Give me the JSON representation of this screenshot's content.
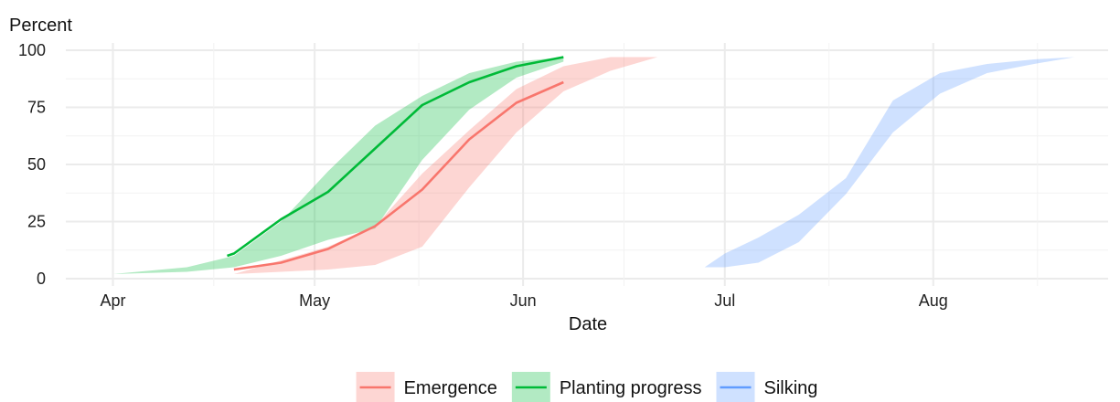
{
  "chart_data": {
    "type": "area",
    "ylabel": "Percent",
    "xlabel": "Date",
    "x_axis_kind": "date",
    "xlim": [
      "2025-03-25",
      "2025-08-27"
    ],
    "ylim": [
      0,
      100
    ],
    "y_ticks": [
      0,
      25,
      50,
      75,
      100
    ],
    "x_ticks": [
      {
        "date": "2025-04-01",
        "label": "Apr"
      },
      {
        "date": "2025-05-01",
        "label": "May"
      },
      {
        "date": "2025-06-01",
        "label": "Jun"
      },
      {
        "date": "2025-07-01",
        "label": "Jul"
      },
      {
        "date": "2025-08-01",
        "label": "Aug"
      }
    ],
    "grid": true,
    "legend_position": "bottom",
    "series": [
      {
        "name": "Emergence",
        "color": "#F8766D",
        "band": [
          {
            "x": "2025-04-19",
            "low": 2,
            "high": 2
          },
          {
            "x": "2025-04-26",
            "low": 3,
            "high": 8
          },
          {
            "x": "2025-05-03",
            "low": 4,
            "high": 14
          },
          {
            "x": "2025-05-10",
            "low": 6,
            "high": 23
          },
          {
            "x": "2025-05-17",
            "low": 14,
            "high": 46
          },
          {
            "x": "2025-05-24",
            "low": 40,
            "high": 65
          },
          {
            "x": "2025-05-31",
            "low": 64,
            "high": 83
          },
          {
            "x": "2025-06-07",
            "low": 82,
            "high": 93
          },
          {
            "x": "2025-06-14",
            "low": 91,
            "high": 97
          },
          {
            "x": "2025-06-21",
            "low": 97,
            "high": 97
          }
        ],
        "line": [
          {
            "x": "2025-04-19",
            "y": 4
          },
          {
            "x": "2025-04-26",
            "y": 7
          },
          {
            "x": "2025-05-03",
            "y": 13
          },
          {
            "x": "2025-05-10",
            "y": 23
          },
          {
            "x": "2025-05-17",
            "y": 39
          },
          {
            "x": "2025-05-24",
            "y": 61
          },
          {
            "x": "2025-05-31",
            "y": 77
          },
          {
            "x": "2025-06-07",
            "y": 86
          }
        ]
      },
      {
        "name": "Planting progress",
        "color": "#00BA38",
        "band": [
          {
            "x": "2025-04-01",
            "low": 2,
            "high": 2
          },
          {
            "x": "2025-04-12",
            "low": 3,
            "high": 5
          },
          {
            "x": "2025-04-19",
            "low": 5,
            "high": 10
          },
          {
            "x": "2025-04-26",
            "low": 10,
            "high": 25
          },
          {
            "x": "2025-05-03",
            "low": 17,
            "high": 47
          },
          {
            "x": "2025-05-10",
            "low": 22,
            "high": 67
          },
          {
            "x": "2025-05-17",
            "low": 52,
            "high": 80
          },
          {
            "x": "2025-05-24",
            "low": 74,
            "high": 90
          },
          {
            "x": "2025-05-31",
            "low": 88,
            "high": 95
          },
          {
            "x": "2025-06-07",
            "low": 95,
            "high": 97
          }
        ],
        "line": [
          {
            "x": "2025-04-18",
            "y": 10
          },
          {
            "x": "2025-04-19",
            "y": 11
          },
          {
            "x": "2025-04-26",
            "y": 26
          },
          {
            "x": "2025-05-03",
            "y": 38
          },
          {
            "x": "2025-05-10",
            "y": 57
          },
          {
            "x": "2025-05-17",
            "y": 76
          },
          {
            "x": "2025-05-24",
            "y": 86
          },
          {
            "x": "2025-05-31",
            "y": 93
          },
          {
            "x": "2025-06-07",
            "y": 97
          }
        ]
      },
      {
        "name": "Silking",
        "color": "#619CFF",
        "band": [
          {
            "x": "2025-06-28",
            "low": 5,
            "high": 5
          },
          {
            "x": "2025-07-01",
            "low": 5,
            "high": 11
          },
          {
            "x": "2025-07-06",
            "low": 7,
            "high": 18
          },
          {
            "x": "2025-07-12",
            "low": 16,
            "high": 28
          },
          {
            "x": "2025-07-19",
            "low": 37,
            "high": 44
          },
          {
            "x": "2025-07-26",
            "low": 64,
            "high": 78
          },
          {
            "x": "2025-08-02",
            "low": 81,
            "high": 90
          },
          {
            "x": "2025-08-09",
            "low": 90,
            "high": 94
          },
          {
            "x": "2025-08-16",
            "low": 94,
            "high": 96
          },
          {
            "x": "2025-08-22",
            "low": 97,
            "high": 97
          }
        ],
        "line": []
      }
    ]
  }
}
